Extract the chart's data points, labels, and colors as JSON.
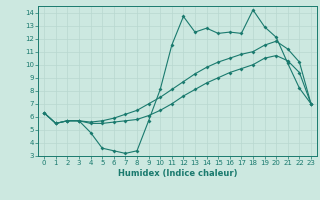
{
  "xlabel": "Humidex (Indice chaleur)",
  "bg_color": "#cce8e0",
  "line_color": "#1a7a6e",
  "grid_color": "#b8d8d0",
  "xlim": [
    -0.5,
    23.5
  ],
  "ylim": [
    3,
    14.5
  ],
  "xticks": [
    0,
    1,
    2,
    3,
    4,
    5,
    6,
    7,
    8,
    9,
    10,
    11,
    12,
    13,
    14,
    15,
    16,
    17,
    18,
    19,
    20,
    21,
    22,
    23
  ],
  "yticks": [
    3,
    4,
    5,
    6,
    7,
    8,
    9,
    10,
    11,
    12,
    13,
    14
  ],
  "line1_x": [
    0,
    1,
    2,
    3,
    4,
    5,
    6,
    7,
    8,
    9,
    10,
    11,
    12,
    13,
    14,
    15,
    16,
    17,
    18,
    19,
    20,
    21,
    22,
    23
  ],
  "line1_y": [
    6.3,
    5.5,
    5.7,
    5.7,
    4.8,
    3.6,
    3.4,
    3.2,
    3.4,
    5.7,
    8.1,
    11.5,
    13.7,
    12.5,
    12.8,
    12.4,
    12.5,
    12.4,
    14.2,
    12.9,
    12.1,
    10.1,
    8.2,
    7.0
  ],
  "line2_x": [
    0,
    1,
    2,
    3,
    4,
    5,
    6,
    7,
    8,
    9,
    10,
    11,
    12,
    13,
    14,
    15,
    16,
    17,
    18,
    19,
    20,
    21,
    22,
    23
  ],
  "line2_y": [
    6.3,
    5.5,
    5.7,
    5.7,
    5.6,
    5.7,
    5.9,
    6.2,
    6.5,
    7.0,
    7.5,
    8.1,
    8.7,
    9.3,
    9.8,
    10.2,
    10.5,
    10.8,
    11.0,
    11.5,
    11.8,
    11.2,
    10.2,
    7.0
  ],
  "line3_x": [
    0,
    1,
    2,
    3,
    4,
    5,
    6,
    7,
    8,
    9,
    10,
    11,
    12,
    13,
    14,
    15,
    16,
    17,
    18,
    19,
    20,
    21,
    22,
    23
  ],
  "line3_y": [
    6.3,
    5.5,
    5.7,
    5.7,
    5.5,
    5.5,
    5.6,
    5.7,
    5.8,
    6.1,
    6.5,
    7.0,
    7.6,
    8.1,
    8.6,
    9.0,
    9.4,
    9.7,
    10.0,
    10.5,
    10.7,
    10.3,
    9.4,
    7.0
  ],
  "xlabel_fontsize": 6,
  "tick_fontsize": 5
}
